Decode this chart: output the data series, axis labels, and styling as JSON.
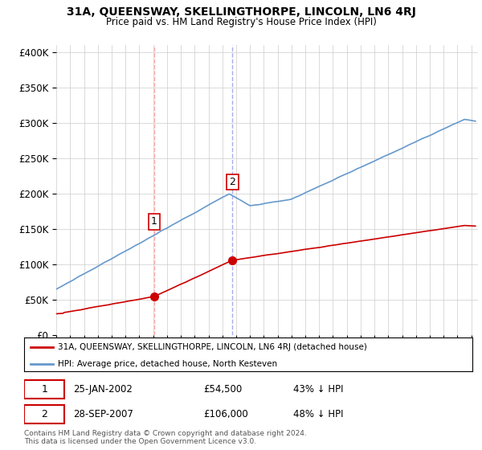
{
  "title": "31A, QUEENSWAY, SKELLINGTHORPE, LINCOLN, LN6 4RJ",
  "subtitle": "Price paid vs. HM Land Registry's House Price Index (HPI)",
  "ylabel_ticks": [
    "£0",
    "£50K",
    "£100K",
    "£150K",
    "£200K",
    "£250K",
    "£300K",
    "£350K",
    "£400K"
  ],
  "ytick_values": [
    0,
    50000,
    100000,
    150000,
    200000,
    250000,
    300000,
    350000,
    400000
  ],
  "ylim": [
    0,
    410000
  ],
  "xlim_start": 1995.0,
  "xlim_end": 2025.5,
  "red_line_color": "#cc0000",
  "blue_line_color": "#6699cc",
  "transaction1_date": 2002.07,
  "transaction1_price": 54500,
  "transaction1_label": "1",
  "transaction2_date": 2007.74,
  "transaction2_price": 106000,
  "transaction2_label": "2",
  "legend_entry1": "31A, QUEENSWAY, SKELLINGTHORPE, LINCOLN, LN6 4RJ (detached house)",
  "legend_entry2": "HPI: Average price, detached house, North Kesteven",
  "annotation1_date": "25-JAN-2002",
  "annotation1_price": "£54,500",
  "annotation1_pct": "43% ↓ HPI",
  "annotation2_date": "28-SEP-2007",
  "annotation2_price": "£106,000",
  "annotation2_pct": "48% ↓ HPI",
  "footer": "Contains HM Land Registry data © Crown copyright and database right 2024.\nThis data is licensed under the Open Government Licence v3.0.",
  "background_color": "#ffffff",
  "grid_color": "#cccccc",
  "vline1_color": "#ffaaaa",
  "vline2_color": "#aaaaee"
}
